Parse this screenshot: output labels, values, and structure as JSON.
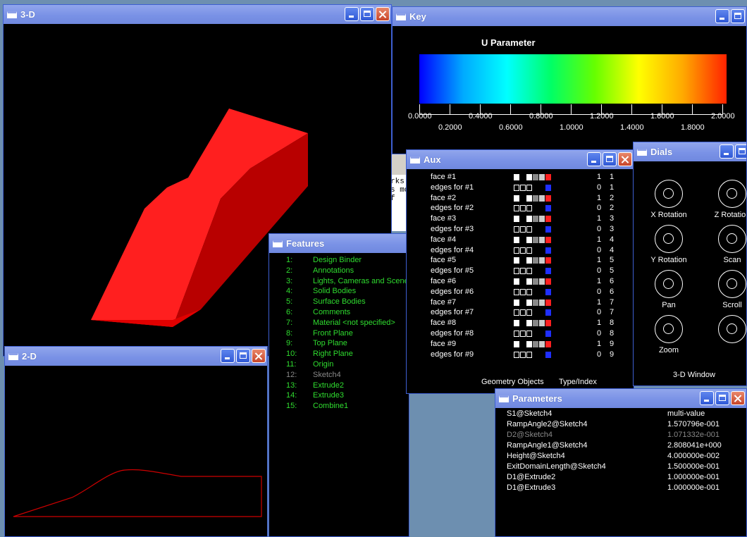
{
  "windows": {
    "w3d": {
      "title": "3-D"
    },
    "key": {
      "title": "Key"
    },
    "aux": {
      "title": "Aux"
    },
    "dials": {
      "title": "Dials"
    },
    "w2d": {
      "title": "2-D"
    },
    "features": {
      "title": "Features"
    },
    "params": {
      "title": "Parameters"
    }
  },
  "key": {
    "heading": "U Parameter",
    "ticks_top": [
      "0.0000",
      "0.4000",
      "0.8000",
      "1.2000",
      "1.6000",
      "2.0000"
    ],
    "ticks_bottom": [
      "0.2000",
      "0.6000",
      "1.0000",
      "1.4000",
      "1.8000"
    ]
  },
  "aux": {
    "rows": [
      {
        "label": "face #1",
        "type": "1",
        "index": "1",
        "kind": "face"
      },
      {
        "label": "edges for #1",
        "type": "0",
        "index": "1",
        "kind": "edge"
      },
      {
        "label": "face #2",
        "type": "1",
        "index": "2",
        "kind": "face"
      },
      {
        "label": "edges for #2",
        "type": "0",
        "index": "2",
        "kind": "edge"
      },
      {
        "label": "face #3",
        "type": "1",
        "index": "3",
        "kind": "face"
      },
      {
        "label": "edges for #3",
        "type": "0",
        "index": "3",
        "kind": "edge"
      },
      {
        "label": "face #4",
        "type": "1",
        "index": "4",
        "kind": "face"
      },
      {
        "label": "edges for #4",
        "type": "0",
        "index": "4",
        "kind": "edge"
      },
      {
        "label": "face #5",
        "type": "1",
        "index": "5",
        "kind": "face"
      },
      {
        "label": "edges for #5",
        "type": "0",
        "index": "5",
        "kind": "edge"
      },
      {
        "label": "face #6",
        "type": "1",
        "index": "6",
        "kind": "face"
      },
      {
        "label": "edges for #6",
        "type": "0",
        "index": "6",
        "kind": "edge"
      },
      {
        "label": "face #7",
        "type": "1",
        "index": "7",
        "kind": "face"
      },
      {
        "label": "edges for #7",
        "type": "0",
        "index": "7",
        "kind": "edge"
      },
      {
        "label": "face #8",
        "type": "1",
        "index": "8",
        "kind": "face"
      },
      {
        "label": "edges for #8",
        "type": "0",
        "index": "8",
        "kind": "edge"
      },
      {
        "label": "face #9",
        "type": "1",
        "index": "9",
        "kind": "face"
      },
      {
        "label": "edges for #9",
        "type": "0",
        "index": "9",
        "kind": "edge"
      }
    ],
    "footer_left": "Geometry Objects",
    "footer_right": "Type/Index"
  },
  "dials": {
    "items": [
      "X Rotation",
      "Z Rotation",
      "Y Rotation",
      "Scan",
      "Pan",
      "Scroll",
      "Zoom",
      ""
    ],
    "footer": "3-D Window"
  },
  "features": {
    "items": [
      {
        "num": "1:",
        "name": "Design Binder",
        "dim": false
      },
      {
        "num": "2:",
        "name": "Annotations",
        "dim": false
      },
      {
        "num": "3:",
        "name": "Lights, Cameras and Scene",
        "dim": false
      },
      {
        "num": "4:",
        "name": "Solid Bodies",
        "dim": false
      },
      {
        "num": "5:",
        "name": "Surface Bodies",
        "dim": false
      },
      {
        "num": "6:",
        "name": "Comments",
        "dim": false
      },
      {
        "num": "7:",
        "name": "Material <not specified>",
        "dim": false
      },
      {
        "num": "8:",
        "name": "Front Plane",
        "dim": false
      },
      {
        "num": "9:",
        "name": "Top Plane",
        "dim": false
      },
      {
        "num": "10:",
        "name": "Right Plane",
        "dim": false
      },
      {
        "num": "11:",
        "name": "Origin",
        "dim": false
      },
      {
        "num": "12:",
        "name": "Sketch4",
        "dim": true
      },
      {
        "num": "13:",
        "name": "Extrude2",
        "dim": false
      },
      {
        "num": "14:",
        "name": "Extrude3",
        "dim": false
      },
      {
        "num": "15:",
        "name": "Combine1",
        "dim": false
      }
    ]
  },
  "params": {
    "rows": [
      {
        "name": "S1@Sketch4",
        "value": "multi-value",
        "dim": false
      },
      {
        "name": "RampAngle2@Sketch4",
        "value": "1.570796e-001",
        "dim": false
      },
      {
        "name": "D2@Sketch4",
        "value": "1.071332e-001",
        "dim": true
      },
      {
        "name": "RampAngle1@Sketch4",
        "value": "2.808041e+000",
        "dim": false
      },
      {
        "name": "Height@Sketch4",
        "value": "4.000000e-002",
        "dim": false
      },
      {
        "name": "ExitDomainLength@Sketch4",
        "value": "1.500000e-001",
        "dim": false
      },
      {
        "name": "D1@Extrude2",
        "value": "1.000000e-001",
        "dim": false
      },
      {
        "name": "D1@Extrude3",
        "value": "1.000000e-001",
        "dim": false
      }
    ]
  },
  "background_fragments": {
    "line1": "rks",
    "line2": "s mo",
    "line3": "f"
  },
  "colors": {
    "solid": "#ff1a1a",
    "sketch": "#cc0000",
    "feature_text": "#2fdc2f",
    "titlebar": "#7a92e6"
  }
}
